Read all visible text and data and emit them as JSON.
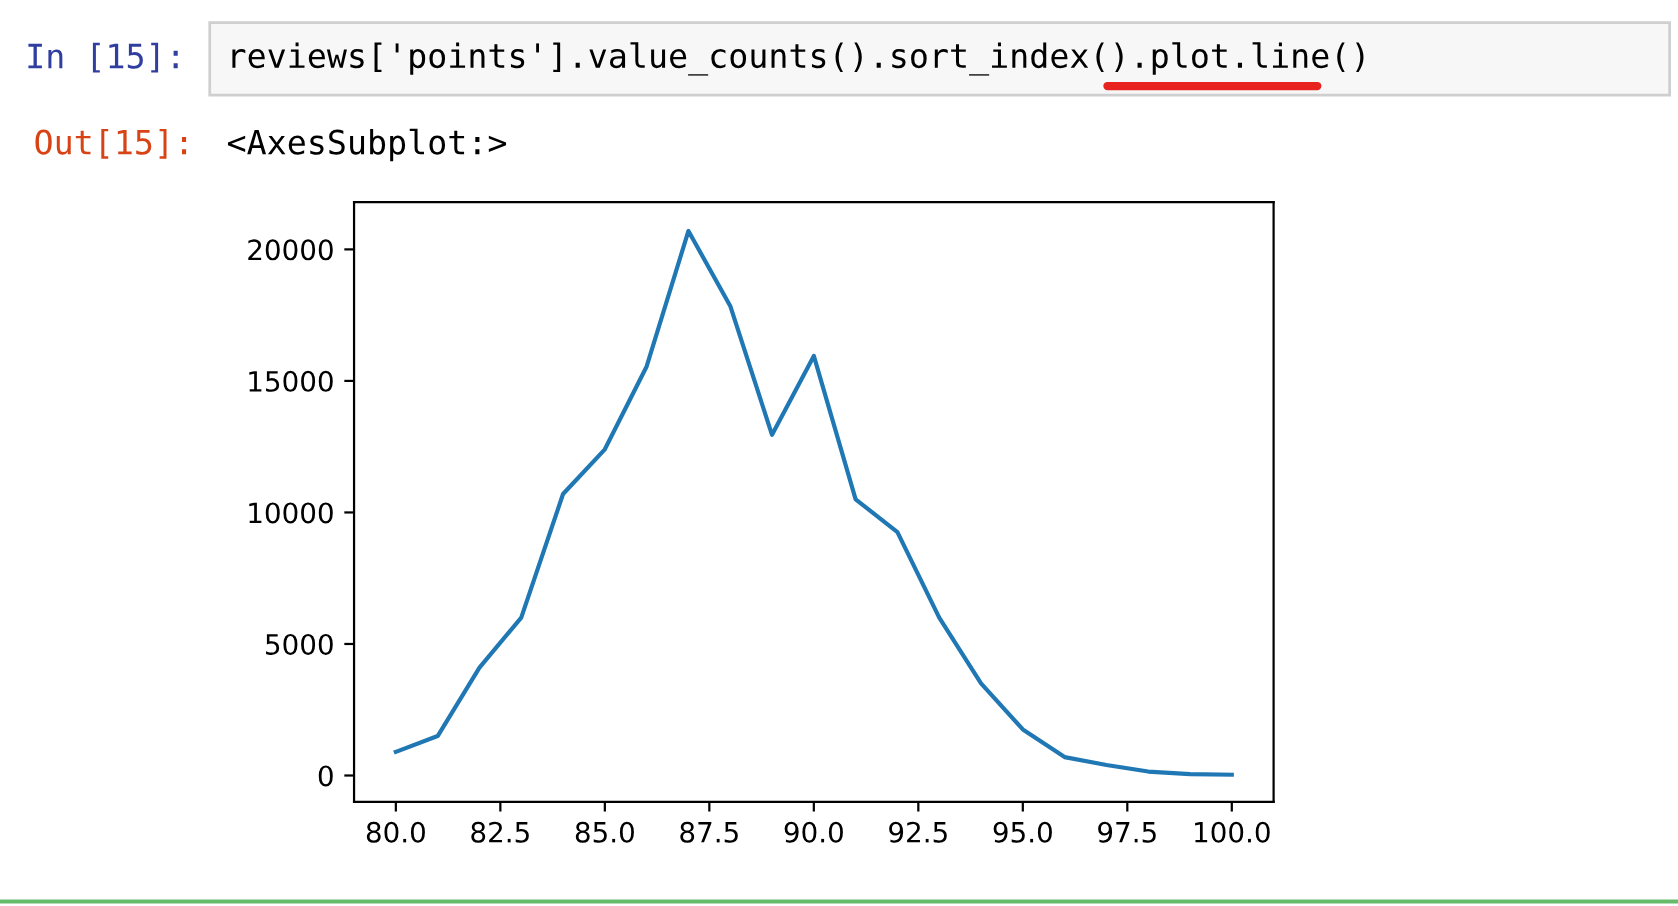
{
  "chart_data": {
    "type": "line",
    "x": [
      80,
      81,
      82,
      83,
      84,
      85,
      86,
      87,
      88,
      89,
      90,
      91,
      92,
      93,
      94,
      95,
      96,
      97,
      98,
      99,
      100
    ],
    "series": [
      {
        "color": "#1f77b4",
        "values": [
          900,
          1500,
          4100,
          6000,
          10700,
          12400,
          15550,
          20700,
          17850,
          12950,
          15950,
          10500,
          9250,
          6000,
          3500,
          1750,
          700,
          400,
          150,
          50,
          30
        ]
      }
    ],
    "xlim": [
      79,
      101
    ],
    "xticks": [
      {
        "value": 80,
        "label": "80.0"
      },
      {
        "value": 82.5,
        "label": "82.5"
      },
      {
        "value": 85,
        "label": "85.0"
      },
      {
        "value": 87.5,
        "label": "87.5"
      },
      {
        "value": 90,
        "label": "90.0"
      },
      {
        "value": 92.5,
        "label": "92.5"
      },
      {
        "value": 95,
        "label": "95.0"
      },
      {
        "value": 97.5,
        "label": "97.5"
      },
      {
        "value": 100,
        "label": "100.0"
      }
    ],
    "ylim": [
      -1000,
      21800
    ],
    "yticks": [
      0,
      5000,
      10000,
      15000,
      20000
    ],
    "grid": false,
    "legend": false,
    "marker": "none",
    "line_style": "solid",
    "annotations": [
      "In [15]:",
      "reviews['points'].value_counts().sort_index().plot.line()",
      "Out[15]:",
      "<AxesSubplot:>"
    ]
  }
}
